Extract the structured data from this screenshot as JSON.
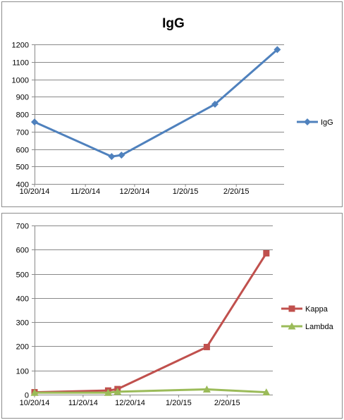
{
  "chart_data": [
    {
      "type": "line",
      "title": "IgG",
      "xlabel": "",
      "ylabel": "",
      "ylim": [
        400,
        1200
      ],
      "ytick_step": 100,
      "xticks": [
        "10/20/14",
        "11/20/14",
        "12/20/14",
        "1/20/15",
        "2/20/15"
      ],
      "x_dates": [
        "2014-10-20",
        "2014-11-20",
        "2014-12-20",
        "2015-01-20",
        "2015-02-20"
      ],
      "grid": true,
      "legend": "right",
      "series": [
        {
          "name": "IgG",
          "color": "#4f81bd",
          "marker": "diamond",
          "points": [
            {
              "x": "2014-10-20",
              "y": 755
            },
            {
              "x": "2014-12-06",
              "y": 557
            },
            {
              "x": "2014-12-12",
              "y": 565
            },
            {
              "x": "2015-02-07",
              "y": 857
            },
            {
              "x": "2015-03-17",
              "y": 1170
            }
          ]
        }
      ]
    },
    {
      "type": "line",
      "title": "",
      "xlabel": "",
      "ylabel": "",
      "ylim": [
        0,
        700
      ],
      "ytick_step": 100,
      "xticks": [
        "10/20/14",
        "11/20/14",
        "12/20/14",
        "1/20/15",
        "2/20/15"
      ],
      "x_dates": [
        "2014-10-20",
        "2014-11-20",
        "2014-12-20",
        "2015-01-20",
        "2015-02-20"
      ],
      "grid": true,
      "legend": "right",
      "series": [
        {
          "name": "Kappa",
          "color": "#c0504d",
          "marker": "square",
          "points": [
            {
              "x": "2014-10-20",
              "y": 10
            },
            {
              "x": "2014-12-06",
              "y": 17
            },
            {
              "x": "2014-12-12",
              "y": 23
            },
            {
              "x": "2015-02-07",
              "y": 197
            },
            {
              "x": "2015-03-17",
              "y": 585
            }
          ]
        },
        {
          "name": "Lambda",
          "color": "#9bbb59",
          "marker": "triangle",
          "points": [
            {
              "x": "2014-10-20",
              "y": 8
            },
            {
              "x": "2014-12-06",
              "y": 8
            },
            {
              "x": "2014-12-12",
              "y": 12
            },
            {
              "x": "2015-02-07",
              "y": 22
            },
            {
              "x": "2015-03-17",
              "y": 10
            }
          ]
        }
      ]
    }
  ]
}
